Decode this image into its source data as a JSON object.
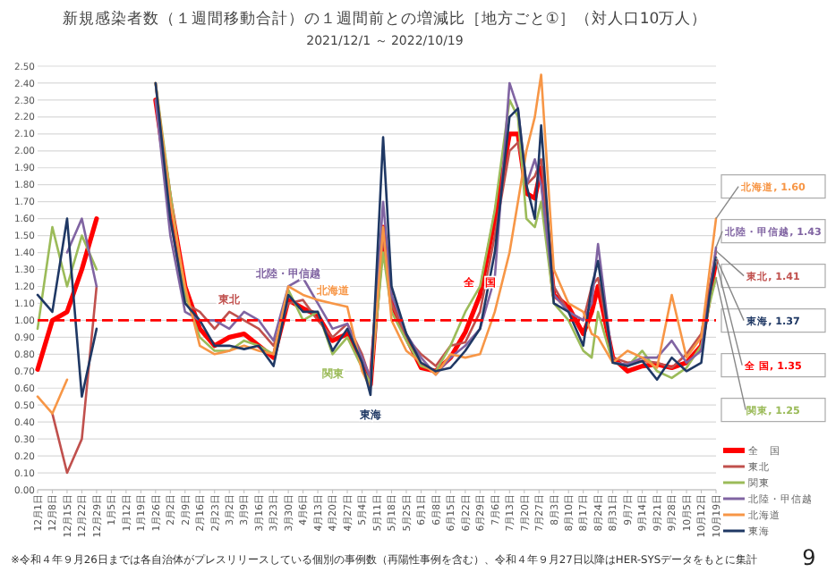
{
  "chart_data": {
    "type": "line",
    "title": "新規感染者数（１週間移動合計）の１週間前との増減比［地方ごと①］（対人口10万人）",
    "subtitle": "2021/12/1 ～ 2022/10/19",
    "x": [
      "2021-12-01",
      "2021-12-08",
      "2021-12-15",
      "2021-12-22",
      "2021-12-29",
      "2022-01-26",
      "2022-02-02",
      "2022-02-09",
      "2022-02-16",
      "2022-02-23",
      "2022-03-02",
      "2022-03-09",
      "2022-03-16",
      "2022-03-23",
      "2022-03-30",
      "2022-04-06",
      "2022-04-13",
      "2022-04-20",
      "2022-04-27",
      "2022-05-04",
      "2022-05-08",
      "2022-05-14",
      "2022-05-18",
      "2022-05-25",
      "2022-06-01",
      "2022-06-08",
      "2022-06-15",
      "2022-06-22",
      "2022-06-29",
      "2022-07-06",
      "2022-07-13",
      "2022-07-17",
      "2022-07-21",
      "2022-07-25",
      "2022-07-28",
      "2022-08-03",
      "2022-08-10",
      "2022-08-17",
      "2022-08-21",
      "2022-08-24",
      "2022-08-31",
      "2022-09-07",
      "2022-09-14",
      "2022-09-21",
      "2022-09-28",
      "2022-10-05",
      "2022-10-12",
      "2022-10-16",
      "2022-10-19"
    ],
    "series": [
      {
        "name": "全　国",
        "color": "#ff0000",
        "values": [
          0.71,
          1.0,
          1.05,
          1.3,
          1.6,
          2.3,
          1.7,
          1.2,
          0.95,
          0.85,
          0.9,
          0.92,
          0.85,
          0.78,
          1.12,
          1.07,
          1.03,
          0.88,
          0.92,
          0.75,
          0.62,
          1.55,
          1.1,
          0.9,
          0.72,
          0.7,
          0.78,
          0.93,
          1.15,
          1.6,
          2.1,
          2.1,
          1.75,
          1.72,
          1.9,
          1.15,
          1.08,
          0.92,
          1.05,
          1.2,
          0.78,
          0.7,
          0.73,
          0.74,
          0.72,
          0.75,
          0.85,
          1.15,
          1.35
        ]
      },
      {
        "name": "東北",
        "color": "#c0504d",
        "values": [
          null,
          0.45,
          0.1,
          0.3,
          1.2,
          2.4,
          1.6,
          1.1,
          1.05,
          0.95,
          1.05,
          1.0,
          0.95,
          0.85,
          1.1,
          1.12,
          1.0,
          0.9,
          0.98,
          0.8,
          0.65,
          1.5,
          1.1,
          0.9,
          0.8,
          0.73,
          0.85,
          0.87,
          1.05,
          1.5,
          2.0,
          2.05,
          1.8,
          1.85,
          1.95,
          1.2,
          1.05,
          1.0,
          1.2,
          1.25,
          0.78,
          0.75,
          0.76,
          0.75,
          0.72,
          0.8,
          0.92,
          1.2,
          1.41
        ]
      },
      {
        "name": "関東",
        "color": "#9bbb59",
        "values": [
          0.95,
          1.55,
          1.2,
          1.5,
          1.3,
          2.4,
          1.75,
          1.15,
          0.9,
          0.82,
          0.82,
          0.88,
          0.85,
          0.8,
          1.18,
          1.0,
          1.05,
          0.8,
          0.9,
          0.72,
          0.63,
          1.4,
          1.05,
          0.88,
          0.73,
          0.7,
          0.85,
          1.05,
          1.2,
          1.65,
          2.3,
          2.2,
          1.6,
          1.55,
          1.7,
          1.1,
          1.0,
          0.82,
          0.78,
          1.05,
          0.75,
          0.73,
          0.82,
          0.7,
          0.66,
          0.72,
          0.85,
          1.1,
          1.25
        ]
      },
      {
        "name": "北陸・甲信越",
        "color": "#8064a2",
        "values": [
          null,
          null,
          1.4,
          1.6,
          1.2,
          2.3,
          1.5,
          1.05,
          1.0,
          1.0,
          0.95,
          1.05,
          1.0,
          0.88,
          1.2,
          1.25,
          1.1,
          0.95,
          0.98,
          0.78,
          0.66,
          1.7,
          1.15,
          0.92,
          0.78,
          0.68,
          0.78,
          0.85,
          0.95,
          1.25,
          2.4,
          2.25,
          1.8,
          1.95,
          1.8,
          1.15,
          1.05,
          1.0,
          1.1,
          1.45,
          0.75,
          0.74,
          0.78,
          0.78,
          0.88,
          0.75,
          0.82,
          1.15,
          1.43
        ]
      },
      {
        "name": "北海道",
        "color": "#f79646",
        "values": [
          0.55,
          0.45,
          0.65,
          null,
          null,
          2.4,
          1.7,
          1.2,
          0.85,
          0.8,
          0.82,
          0.85,
          0.82,
          0.8,
          1.2,
          1.15,
          1.12,
          1.1,
          1.08,
          0.7,
          0.6,
          1.55,
          1.0,
          0.82,
          0.75,
          0.68,
          0.8,
          0.78,
          0.8,
          1.05,
          1.4,
          1.7,
          2.0,
          2.2,
          2.45,
          1.3,
          1.1,
          1.05,
          0.92,
          0.9,
          0.75,
          0.82,
          0.78,
          0.72,
          1.15,
          0.78,
          0.9,
          1.3,
          1.6
        ]
      },
      {
        "name": "東海",
        "color": "#1f3864",
        "values": [
          1.15,
          1.05,
          1.6,
          0.55,
          0.95,
          2.4,
          1.6,
          1.1,
          1.0,
          0.85,
          0.85,
          0.83,
          0.85,
          0.73,
          1.15,
          1.05,
          1.05,
          0.82,
          0.95,
          0.75,
          0.56,
          2.08,
          1.2,
          0.92,
          0.75,
          0.7,
          0.72,
          0.82,
          0.95,
          1.4,
          2.2,
          2.25,
          1.8,
          1.6,
          2.15,
          1.1,
          1.05,
          0.85,
          1.2,
          1.35,
          0.75,
          0.73,
          0.76,
          0.65,
          0.78,
          0.7,
          0.75,
          1.15,
          1.37
        ]
      }
    ],
    "xlim": [
      "2021-12-01",
      "2022-10-19"
    ],
    "xticks": [
      {
        "value": "2021-12-01",
        "label": "12月1日"
      },
      {
        "value": "2021-12-08",
        "label": "12月8日"
      },
      {
        "value": "2021-12-15",
        "label": "12月15日"
      },
      {
        "value": "2021-12-22",
        "label": "12月22日"
      },
      {
        "value": "2021-12-29",
        "label": "12月29日"
      },
      {
        "value": "2022-01-05",
        "label": "1月5日"
      },
      {
        "value": "2022-01-12",
        "label": "1月12日"
      },
      {
        "value": "2022-01-19",
        "label": "1月19日"
      },
      {
        "value": "2022-01-26",
        "label": "1月26日"
      },
      {
        "value": "2022-02-02",
        "label": "2月2日"
      },
      {
        "value": "2022-02-09",
        "label": "2月9日"
      },
      {
        "value": "2022-02-16",
        "label": "2月16日"
      },
      {
        "value": "2022-02-23",
        "label": "2月23日"
      },
      {
        "value": "2022-03-02",
        "label": "3月2日"
      },
      {
        "value": "2022-03-09",
        "label": "3月9日"
      },
      {
        "value": "2022-03-16",
        "label": "3月16日"
      },
      {
        "value": "2022-03-23",
        "label": "3月23日"
      },
      {
        "value": "2022-03-30",
        "label": "3月30日"
      },
      {
        "value": "2022-04-06",
        "label": "4月6日"
      },
      {
        "value": "2022-04-13",
        "label": "4月13日"
      },
      {
        "value": "2022-04-20",
        "label": "4月20日"
      },
      {
        "value": "2022-04-27",
        "label": "4月27日"
      },
      {
        "value": "2022-05-04",
        "label": "5月4日"
      },
      {
        "value": "2022-05-11",
        "label": "5月11日"
      },
      {
        "value": "2022-05-18",
        "label": "5月18日"
      },
      {
        "value": "2022-05-25",
        "label": "5月25日"
      },
      {
        "value": "2022-06-01",
        "label": "6月1日"
      },
      {
        "value": "2022-06-08",
        "label": "6月8日"
      },
      {
        "value": "2022-06-15",
        "label": "6月15日"
      },
      {
        "value": "2022-06-22",
        "label": "6月22日"
      },
      {
        "value": "2022-06-29",
        "label": "6月29日"
      },
      {
        "value": "2022-07-06",
        "label": "7月6日"
      },
      {
        "value": "2022-07-13",
        "label": "7月13日"
      },
      {
        "value": "2022-07-20",
        "label": "7月20日"
      },
      {
        "value": "2022-07-27",
        "label": "7月27日"
      },
      {
        "value": "2022-08-03",
        "label": "8月3日"
      },
      {
        "value": "2022-08-10",
        "label": "8月10日"
      },
      {
        "value": "2022-08-17",
        "label": "8月17日"
      },
      {
        "value": "2022-08-24",
        "label": "8月24日"
      },
      {
        "value": "2022-08-31",
        "label": "8月31日"
      },
      {
        "value": "2022-09-07",
        "label": "9月7日"
      },
      {
        "value": "2022-09-14",
        "label": "9月14日"
      },
      {
        "value": "2022-09-21",
        "label": "9月21日"
      },
      {
        "value": "2022-09-28",
        "label": "9月28日"
      },
      {
        "value": "2022-10-05",
        "label": "10月5日"
      },
      {
        "value": "2022-10-12",
        "label": "10月12日"
      },
      {
        "value": "2022-10-19",
        "label": "10月19日"
      }
    ],
    "ylim": [
      0,
      2.5
    ],
    "yticks": [
      {
        "value": 0,
        "label": "0.00"
      },
      {
        "value": 0.1,
        "label": "0.10"
      },
      {
        "value": 0.2,
        "label": "0.20"
      },
      {
        "value": 0.3,
        "label": "0.30"
      },
      {
        "value": 0.4,
        "label": "0.40"
      },
      {
        "value": 0.5,
        "label": "0.50"
      },
      {
        "value": 0.6,
        "label": "0.60"
      },
      {
        "value": 0.7,
        "label": "0.70"
      },
      {
        "value": 0.8,
        "label": "0.80"
      },
      {
        "value": 0.9,
        "label": "0.90"
      },
      {
        "value": 1,
        "label": "1.00"
      },
      {
        "value": 1.1,
        "label": "1.10"
      },
      {
        "value": 1.2,
        "label": "1.20"
      },
      {
        "value": 1.3,
        "label": "1.30"
      },
      {
        "value": 1.4,
        "label": "1.40"
      },
      {
        "value": 1.5,
        "label": "1.50"
      },
      {
        "value": 1.6,
        "label": "1.60"
      },
      {
        "value": 1.7,
        "label": "1.70"
      },
      {
        "value": 1.8,
        "label": "1.80"
      },
      {
        "value": 1.9,
        "label": "1.90"
      },
      {
        "value": 2,
        "label": "2.00"
      },
      {
        "value": 2.1,
        "label": "2.10"
      },
      {
        "value": 2.2,
        "label": "2.20"
      },
      {
        "value": 2.3,
        "label": "2.30"
      },
      {
        "value": 2.4,
        "label": "2.40"
      },
      {
        "value": 2.5,
        "label": "2.50"
      }
    ],
    "grid": "y",
    "legend": "bottom right",
    "line_style": "solid",
    "marker": "none",
    "ref_lines": [
      {
        "axis": "y",
        "value": 1,
        "color": "#ff0000",
        "line_style": "dashed"
      }
    ],
    "annotations": [
      {
        "text": "北陸・甲信越",
        "x": "2022-03-30",
        "y": 1.2
      },
      {
        "text": "北海道",
        "x": "2022-04-20",
        "y": 1.1
      },
      {
        "text": "東北",
        "x": "2022-03-02",
        "y": 1.05
      },
      {
        "text": "関東",
        "x": "2022-04-20",
        "y": 0.8
      },
      {
        "text": "東海",
        "x": "2022-05-08",
        "y": 0.56
      },
      {
        "text": "全　国",
        "x": "2022-06-29",
        "y": 1.15
      },
      {
        "text": "北海道, 1.60",
        "x": "2022-10-19",
        "y": 1.6
      },
      {
        "text": "北陸・甲信越, 1.43",
        "x": "2022-10-19",
        "y": 1.43
      },
      {
        "text": "東北, 1.41",
        "x": "2022-10-19",
        "y": 1.41
      },
      {
        "text": "東海, 1.37",
        "x": "2022-10-19",
        "y": 1.37
      },
      {
        "text": "全 国, 1.35",
        "x": "2022-10-19",
        "y": 1.35
      },
      {
        "text": "関東, 1.25",
        "x": "2022-10-19",
        "y": 1.25
      },
      "※令和４年９月26日までは各自治体がプレスリリースしている個別の事例数（再陽性事例を含む）、令和４年９月27日以降はHER-SYSデータをもとに集計",
      "9"
    ]
  }
}
